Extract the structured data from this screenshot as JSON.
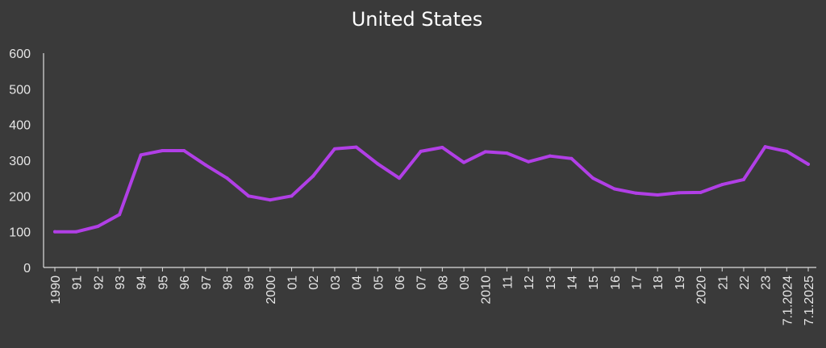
{
  "colors": {
    "background": "#3a3a3a",
    "line": "#b13fe6",
    "axis": "#dddddd",
    "text": "#e6e6e6"
  },
  "chart_data": {
    "type": "line",
    "title": "United States",
    "xlabel": "",
    "ylabel": "",
    "ylim": [
      0,
      600
    ],
    "yticks": [
      0,
      100,
      200,
      300,
      400,
      500,
      600
    ],
    "grid": false,
    "legend": "none",
    "categories": [
      "1990",
      "91",
      "92",
      "93",
      "94",
      "95",
      "96",
      "97",
      "98",
      "99",
      "2000",
      "01",
      "02",
      "03",
      "04",
      "05",
      "06",
      "07",
      "08",
      "09",
      "2010",
      "11",
      "12",
      "13",
      "14",
      "15",
      "16",
      "17",
      "18",
      "19",
      "2020",
      "21",
      "22",
      "23",
      "7.1.2024",
      "7.1.2025"
    ],
    "series": [
      {
        "values": [
          100,
          100,
          115,
          148,
          315,
          327,
          327,
          287,
          250,
          200,
          189,
          200,
          256,
          332,
          337,
          290,
          250,
          325,
          336,
          294,
          324,
          320,
          296,
          312,
          305,
          250,
          220,
          208,
          203,
          209,
          210,
          232,
          246,
          338,
          325,
          289
        ]
      }
    ]
  }
}
